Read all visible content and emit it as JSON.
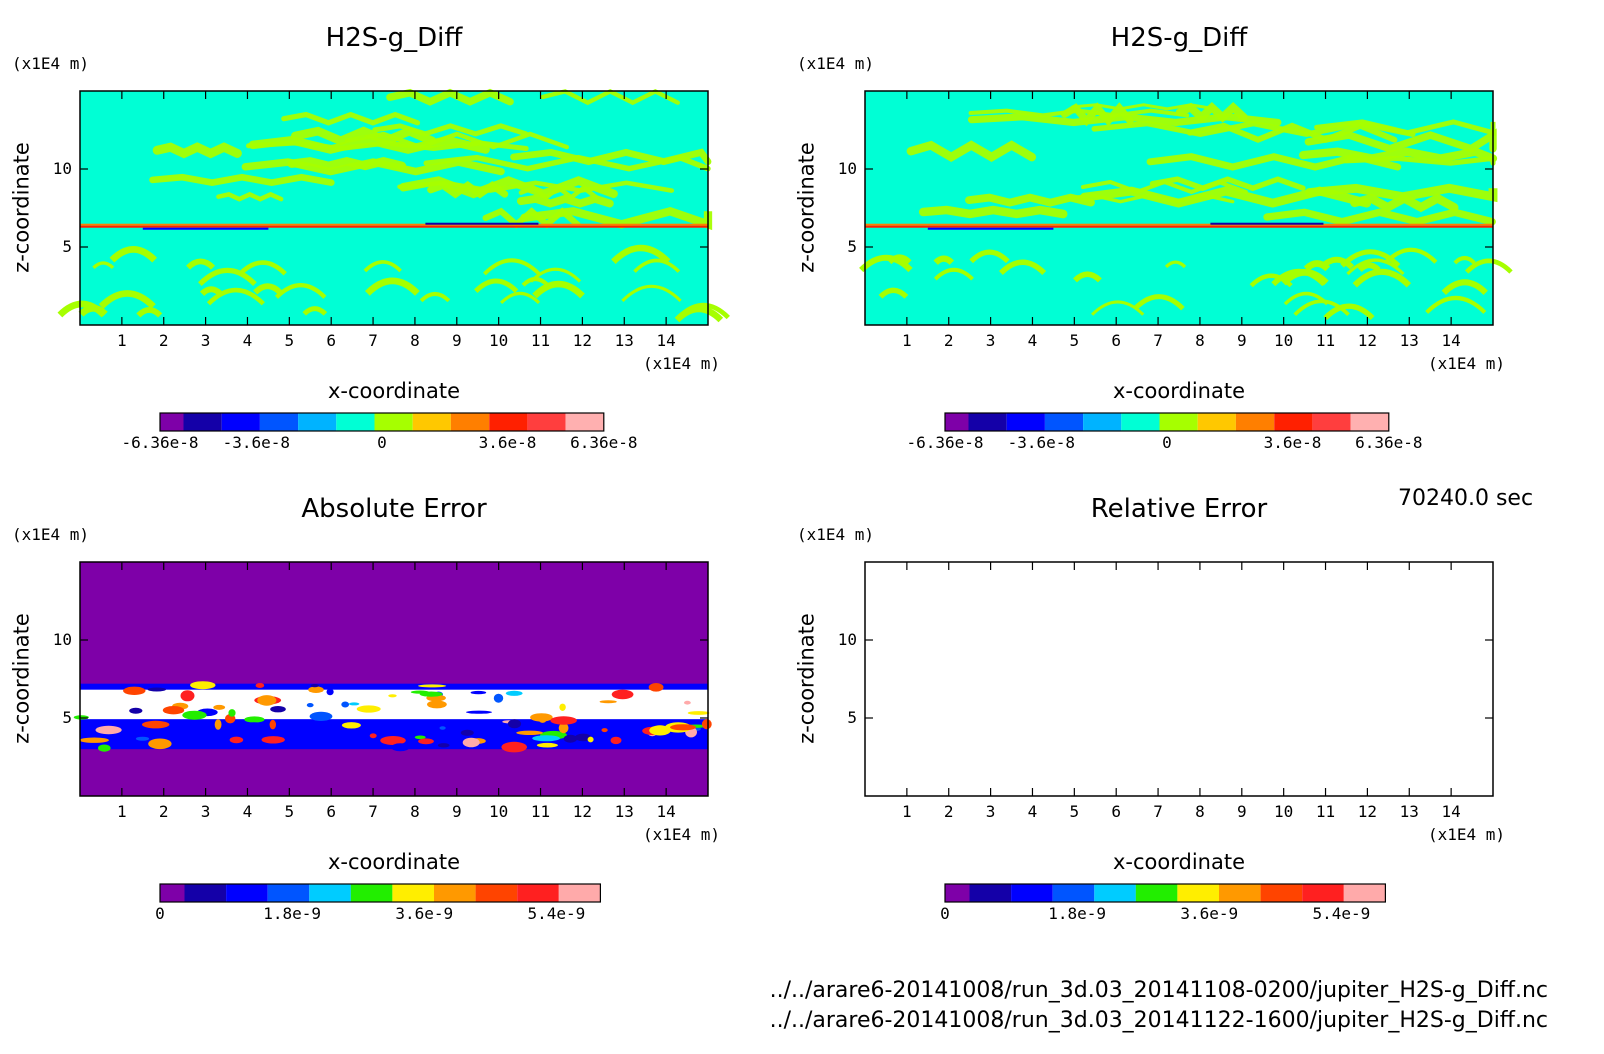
{
  "time_label": "70240.0 sec",
  "file_paths": [
    "../../arare6-20141008/run_3d.03_20141108-0200/jupiter_H2S-g_Diff.nc",
    "../../arare6-20141008/run_3d.03_20141122-1600/jupiter_H2S-g_Diff.nc"
  ],
  "colors": {
    "diff_palette": [
      "#7e00a8",
      "#1400a8",
      "#0000ff",
      "#0055ff",
      "#00b3ff",
      "#00ffd5",
      "#a6ff00",
      "#ffc800",
      "#ff7f00",
      "#ff2000",
      "#ff3e3e",
      "#ffb0b0"
    ],
    "error_palette": [
      "#7e00a8",
      "#1400a8",
      "#0000ff",
      "#0055ff",
      "#00ccff",
      "#22ee00",
      "#ffee00",
      "#ff9900",
      "#ff4400",
      "#ff2020",
      "#ffaaaa"
    ],
    "diff_background": "#00ffd5",
    "diff_band": "#a6ff00",
    "error_background": "#7e00a8"
  },
  "chart_data": [
    {
      "type": "heatmap",
      "title": "H2S-g_Diff",
      "xlabel": "x-coordinate",
      "ylabel": "z-coordinate",
      "x_unit": "(x1E4 m)",
      "y_unit": "(x1E4 m)",
      "xlim": [
        0,
        15
      ],
      "ylim": [
        0,
        15
      ],
      "x_ticks": [
        "1",
        "2",
        "3",
        "4",
        "5",
        "6",
        "7",
        "8",
        "9",
        "10",
        "11",
        "12",
        "13",
        "14"
      ],
      "y_ticks": [
        "5",
        "10"
      ],
      "colorbar_labels": [
        "-6.36e-8",
        "-3.6e-8",
        "0",
        "3.6e-8",
        "6.36e-8"
      ],
      "colorbar_range": [
        -6.36e-08,
        6.36e-08
      ]
    },
    {
      "type": "heatmap",
      "title": "H2S-g_Diff",
      "xlabel": "x-coordinate",
      "ylabel": "z-coordinate",
      "x_unit": "(x1E4 m)",
      "y_unit": "(x1E4 m)",
      "xlim": [
        0,
        15
      ],
      "ylim": [
        0,
        15
      ],
      "x_ticks": [
        "1",
        "2",
        "3",
        "4",
        "5",
        "6",
        "7",
        "8",
        "9",
        "10",
        "11",
        "12",
        "13",
        "14"
      ],
      "y_ticks": [
        "5",
        "10"
      ],
      "colorbar_labels": [
        "-6.36e-8",
        "-3.6e-8",
        "0",
        "3.6e-8",
        "6.36e-8"
      ],
      "colorbar_range": [
        -6.36e-08,
        6.36e-08
      ]
    },
    {
      "type": "heatmap",
      "title": "Absolute Error",
      "xlabel": "x-coordinate",
      "ylabel": "z-coordinate",
      "x_unit": "(x1E4 m)",
      "y_unit": "(x1E4 m)",
      "xlim": [
        0,
        15
      ],
      "ylim": [
        0,
        15
      ],
      "x_ticks": [
        "1",
        "2",
        "3",
        "4",
        "5",
        "6",
        "7",
        "8",
        "9",
        "10",
        "11",
        "12",
        "13",
        "14"
      ],
      "y_ticks": [
        "5",
        "10"
      ],
      "colorbar_labels": [
        "0",
        "1.8e-9",
        "3.6e-9",
        "5.4e-9"
      ],
      "colorbar_range": [
        0,
        6e-09
      ]
    },
    {
      "type": "heatmap",
      "title": "Relative Error",
      "xlabel": "x-coordinate",
      "ylabel": "z-coordinate",
      "x_unit": "(x1E4 m)",
      "y_unit": "(x1E4 m)",
      "xlim": [
        0,
        15
      ],
      "ylim": [
        0,
        15
      ],
      "x_ticks": [
        "1",
        "2",
        "3",
        "4",
        "5",
        "6",
        "7",
        "8",
        "9",
        "10",
        "11",
        "12",
        "13",
        "14"
      ],
      "y_ticks": [
        "5",
        "10"
      ],
      "colorbar_labels": [
        "0",
        "1.8e-9",
        "3.6e-9",
        "5.4e-9"
      ],
      "colorbar_range": [
        0,
        6e-09
      ],
      "empty": true
    }
  ]
}
